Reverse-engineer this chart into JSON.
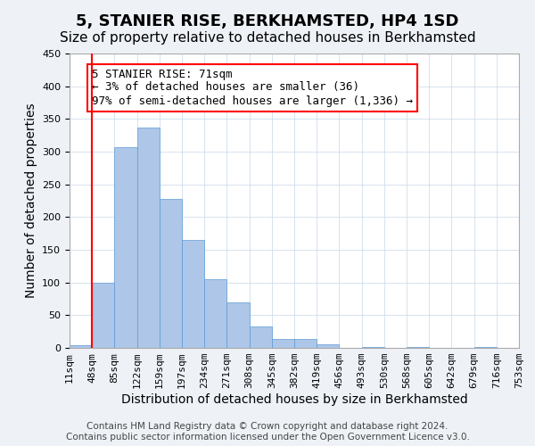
{
  "title": "5, STANIER RISE, BERKHAMSTED, HP4 1SD",
  "subtitle": "Size of property relative to detached houses in Berkhamsted",
  "xlabel": "Distribution of detached houses by size in Berkhamsted",
  "ylabel": "Number of detached properties",
  "footer": "Contains HM Land Registry data © Crown copyright and database right 2024.\nContains public sector information licensed under the Open Government Licence v3.0.",
  "bar_values": [
    4,
    100,
    307,
    337,
    228,
    165,
    105,
    70,
    33,
    14,
    13,
    6,
    0,
    2,
    0,
    2,
    0,
    0,
    2,
    0
  ],
  "x_labels": [
    "11sqm",
    "48sqm",
    "85sqm",
    "122sqm",
    "159sqm",
    "197sqm",
    "234sqm",
    "271sqm",
    "308sqm",
    "345sqm",
    "382sqm",
    "419sqm",
    "456sqm",
    "493sqm",
    "530sqm",
    "568sqm",
    "605sqm",
    "642sqm",
    "679sqm",
    "716sqm",
    "753sqm"
  ],
  "bar_color": "#aec6e8",
  "bar_edge_color": "#5b9bd5",
  "vline_x": 1,
  "vline_color": "red",
  "annotation_text": "5 STANIER RISE: 71sqm\n← 3% of detached houses are smaller (36)\n97% of semi-detached houses are larger (1,336) →",
  "ylim": [
    0,
    450
  ],
  "yticks": [
    0,
    50,
    100,
    150,
    200,
    250,
    300,
    350,
    400,
    450
  ],
  "bg_color": "#eef2f7",
  "plot_bg_color": "#ffffff",
  "grid_color": "#c8d8e8",
  "title_fontsize": 13,
  "subtitle_fontsize": 11,
  "xlabel_fontsize": 10,
  "ylabel_fontsize": 10,
  "tick_fontsize": 8,
  "annotation_fontsize": 9,
  "footer_fontsize": 7.5
}
